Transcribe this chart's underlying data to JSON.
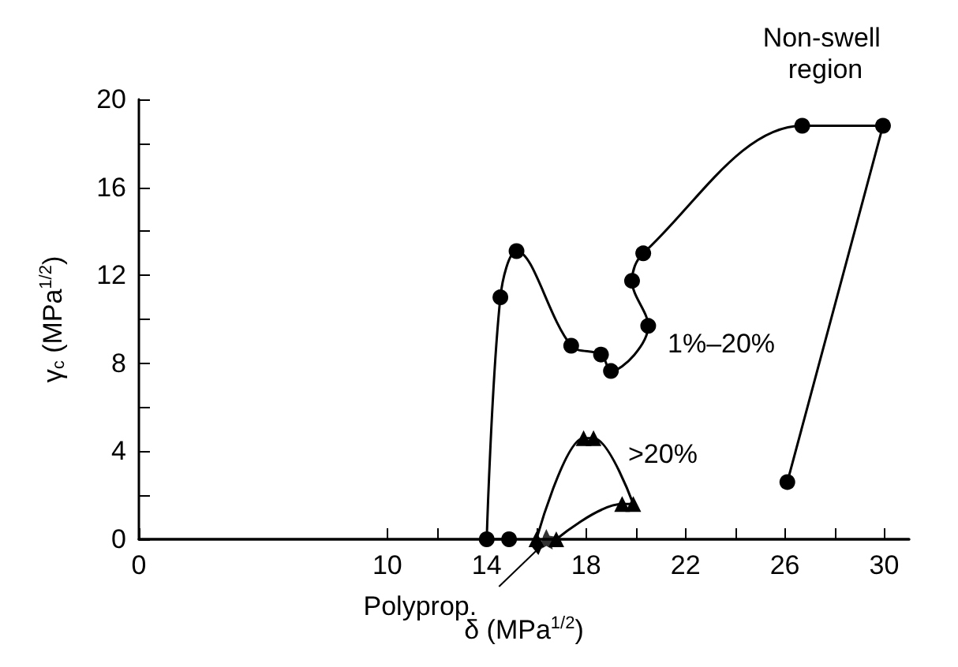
{
  "chart_data": {
    "type": "line",
    "xlabel": "δ (MPa$^{1/2}$)",
    "ylabel": "γ$_{c}$ (MPa$^{1/2}$)",
    "xlim": [
      0,
      31
    ],
    "ylim": [
      0,
      20
    ],
    "xticks": [
      0,
      10,
      {
        "value": 12,
        "label": null
      },
      14,
      {
        "value": 16,
        "label": null
      },
      18,
      {
        "value": 20,
        "label": null
      },
      22,
      {
        "value": 24,
        "label": null
      },
      26,
      {
        "value": 28,
        "label": null
      },
      30
    ],
    "yticks": [
      0,
      {
        "value": 2,
        "label": null
      },
      4,
      {
        "value": 6,
        "label": null
      },
      8,
      {
        "value": 10,
        "label": null
      },
      12,
      {
        "value": 14,
        "label": null
      },
      16,
      {
        "value": 18,
        "label": null
      },
      20
    ],
    "line_style": "solid",
    "series": [
      {
        "marker": "circle",
        "color": "#000000",
        "x": [
          14.9,
          14.0,
          14.55,
          15.2,
          17.4,
          18.6,
          19.0,
          20.5,
          19.85,
          20.3,
          26.7,
          29.95,
          26.1
        ],
        "values": [
          0,
          0,
          11.0,
          13.1,
          8.8,
          8.4,
          7.65,
          9.7,
          11.75,
          13.0,
          18.8,
          18.8,
          2.6
        ]
      },
      {
        "marker": "triangle",
        "color": "#000000",
        "x": [
          16.0,
          17.9,
          18.3,
          19.9,
          19.45,
          16.8
        ],
        "values": [
          0,
          4.6,
          4.6,
          1.6,
          1.6,
          0
        ]
      },
      {
        "type": "scatter",
        "marker": "star",
        "color": "#000000",
        "x": [
          16.4
        ],
        "values": [
          0
        ]
      }
    ],
    "annotations": [
      "Non-swell region",
      "1%–20%",
      ">20%",
      {
        "text": "Polyprop.",
        "x": 16.4,
        "y": 0
      }
    ]
  }
}
